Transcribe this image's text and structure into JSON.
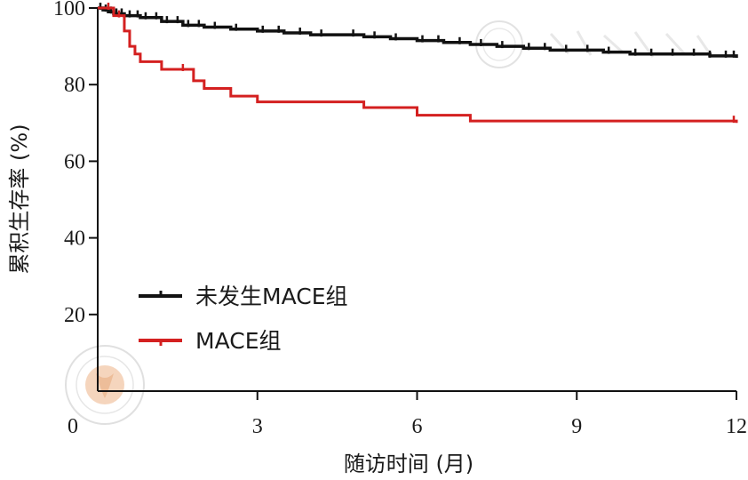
{
  "chart_data": {
    "type": "line",
    "step": true,
    "xlabel": "随访时间 (月)",
    "ylabel": "累积生存率 (%)",
    "xlim": [
      0,
      12
    ],
    "ylim": [
      0,
      100
    ],
    "x_ticks": [
      0,
      3,
      6,
      9,
      12
    ],
    "y_ticks": [
      20,
      40,
      60,
      80,
      100
    ],
    "grid": false,
    "legend_position": "lower-left",
    "series": [
      {
        "name": "未发生MACE组",
        "color": "#111111",
        "x": [
          0,
          0.1,
          0.2,
          0.3,
          0.5,
          0.8,
          1.2,
          1.6,
          2.0,
          2.5,
          3.0,
          3.5,
          4.0,
          4.5,
          5.0,
          5.5,
          6.0,
          6.5,
          7.0,
          7.5,
          8.0,
          8.5,
          9.0,
          9.5,
          10.0,
          10.5,
          11.0,
          11.5,
          12.0
        ],
        "y": [
          100,
          99.5,
          99,
          98.5,
          98,
          97.5,
          96.5,
          95.5,
          95,
          94.5,
          94,
          93.5,
          93,
          93,
          92.5,
          92,
          91.5,
          91,
          90.5,
          90,
          89.5,
          89,
          89,
          88.5,
          88,
          88,
          88,
          87.5,
          87
        ]
      },
      {
        "name": "MACE组",
        "color": "#d42020",
        "x": [
          0,
          0.3,
          0.5,
          0.6,
          0.7,
          0.8,
          1.0,
          1.2,
          1.5,
          1.8,
          2.0,
          2.5,
          3.0,
          4.0,
          5.0,
          6.0,
          7.0,
          8.0,
          9.0,
          10.0,
          11.0,
          12.0
        ],
        "y": [
          100,
          98,
          94,
          90,
          88,
          86,
          86,
          84,
          84,
          81,
          79,
          77,
          75.5,
          75.5,
          74,
          72,
          70.5,
          70.5,
          70.5,
          70.5,
          70.5,
          70
        ]
      }
    ],
    "censor_marks": {
      "未发生MACE组": [
        0.05,
        0.15,
        0.25,
        0.35,
        0.45,
        0.6,
        0.75,
        0.9,
        1.1,
        1.3,
        1.5,
        1.7,
        1.9,
        2.2,
        2.6,
        3.1,
        3.4,
        3.8,
        4.2,
        4.8,
        5.2,
        5.6,
        6.1,
        6.4,
        6.8,
        7.2,
        7.6,
        8.1,
        8.4,
        8.8,
        9.2,
        9.6,
        10.1,
        10.4,
        10.8,
        11.2,
        11.5,
        11.8,
        11.95
      ],
      "MACE组": [
        0.2,
        0.4,
        1.6,
        11.95
      ]
    }
  }
}
